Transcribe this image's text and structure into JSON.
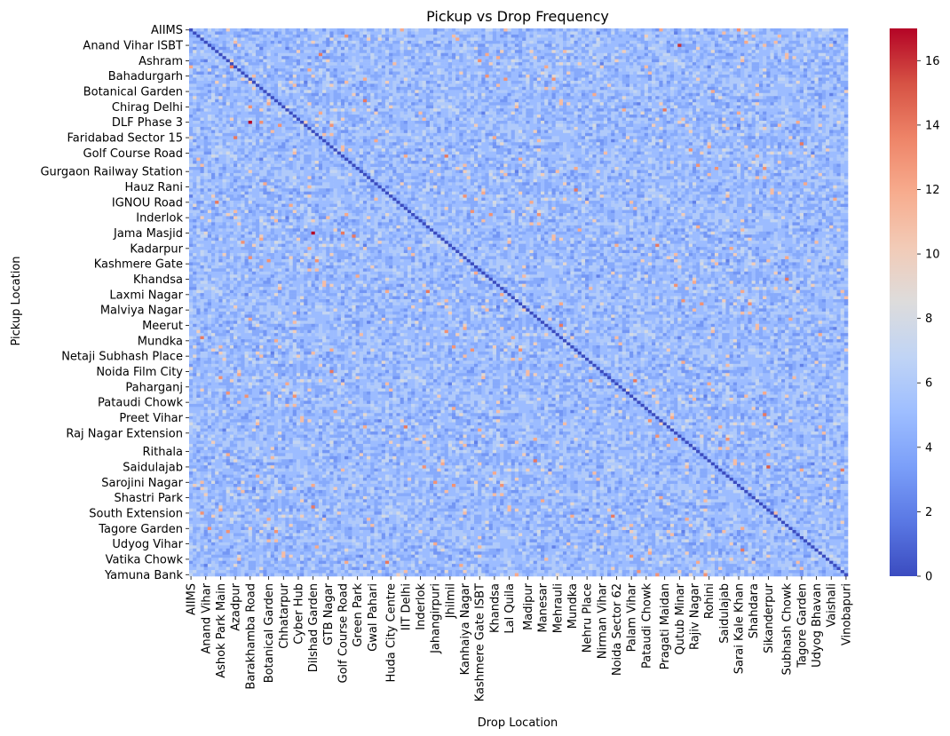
{
  "chart_data": {
    "type": "heatmap",
    "title": "Pickup vs Drop Frequency",
    "xlabel": "Drop Location",
    "ylabel": "Pickup Location",
    "n_rows": 178,
    "n_cols": 178,
    "row_tick_labels": [
      "AIIMS",
      "Anand Vihar ISBT",
      "Ashram",
      "Bahadurgarh",
      "Botanical Garden",
      "Chirag Delhi",
      "DLF Phase 3",
      "Faridabad Sector 15",
      "Golf Course Road",
      "Gurgaon Railway Station",
      "Hauz Rani",
      "IGNOU Road",
      "Inderlok",
      "Jama Masjid",
      "Kadarpur",
      "Kashmere Gate",
      "Khandsa",
      "Laxmi Nagar",
      "Malviya Nagar",
      "Meerut",
      "Mundka",
      "Netaji Subhash Place",
      "Noida Film City",
      "Paharganj",
      "Pataudi Chowk",
      "Preet Vihar",
      "Raj Nagar Extension",
      "Rithala",
      "Saidulajab",
      "Sarojini Nagar",
      "Shastri Park",
      "South Extension",
      "Tagore Garden",
      "Udyog Vihar",
      "Vatika Chowk",
      "Yamuna Bank"
    ],
    "col_tick_labels": [
      "AIIMS",
      "Anand Vihar",
      "Ashok Park Main",
      "Azadpur",
      "Barakhamba Road",
      "Botanical Garden",
      "Chhatarpur",
      "Cyber Hub",
      "Dilshad Garden",
      "GTB Nagar",
      "Golf Course Road",
      "Green Park",
      "Gwal Pahari",
      "Huda City Centre",
      "IIT Delhi",
      "Inderlok",
      "Jahangirpuri",
      "Jhilmil",
      "Kanhaiya Nagar",
      "Kashmere Gate ISBT",
      "Khandsa",
      "Lal Quila",
      "Madipur",
      "Manesar",
      "Mehrauli",
      "Mundka",
      "Nehru Place",
      "Nirman Vihar",
      "Noida Sector 62",
      "Palam Vihar",
      "Pataudi Chowk",
      "Pragati Maidan",
      "Qutub Minar",
      "Rajiv Nagar",
      "Rohini",
      "Saidulajab",
      "Sarai Kale Khan",
      "Shahdara",
      "Sikanderpur",
      "Subhash Chowk",
      "Tagore Garden",
      "Udyog Bhavan",
      "Vaishali",
      "Vinobapuri"
    ],
    "colorbar": {
      "cmap": "coolwarm",
      "vmin": 0,
      "vmax": 17,
      "ticks": [
        0,
        2,
        4,
        6,
        8,
        10,
        12,
        14,
        16
      ],
      "colors": [
        "#3b4cc0",
        "#5a78e4",
        "#7b9ff9",
        "#9ebeff",
        "#c0d4f5",
        "#dddcdc",
        "#f2cbb7",
        "#f7ac8e",
        "#ee8468",
        "#d65244",
        "#b40426"
      ]
    },
    "diagonal_value": 0,
    "typical_value_range": [
      2,
      8
    ],
    "highlighted_cells": [
      {
        "row": "DLF Phase 3",
        "col": "Barakhamba Road",
        "value": 17
      },
      {
        "row": "Jama Masjid",
        "col": "Dilshad Garden",
        "value": 17
      },
      {
        "row": "Jama Masjid",
        "col": "Golf Course Road",
        "value": 14
      },
      {
        "row": "Faridabad Sector 15",
        "col": "Azadpur",
        "value": 14
      },
      {
        "row": "Anand Vihar ISBT",
        "col": "Qutub Minar",
        "value": 16
      },
      {
        "row": "Saidulajab",
        "col": "Sikanderpur",
        "value": 15
      }
    ]
  }
}
